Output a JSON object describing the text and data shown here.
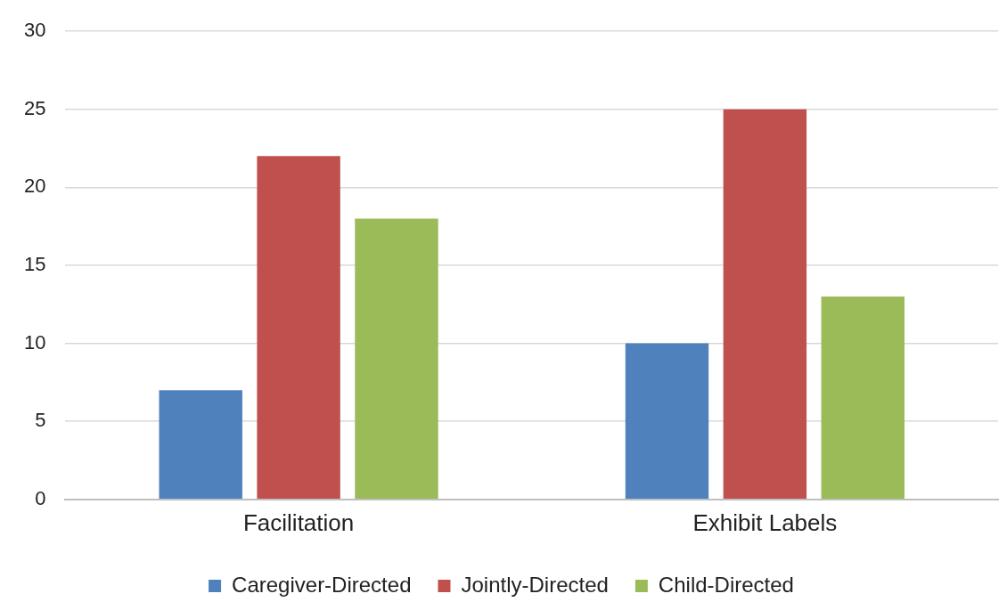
{
  "chart_data": {
    "type": "bar",
    "categories": [
      "Facilitation",
      "Exhibit Labels"
    ],
    "series": [
      {
        "name": "Caregiver-Directed",
        "color": "#4f81bd",
        "values": [
          7,
          10
        ]
      },
      {
        "name": "Jointly-Directed",
        "color": "#c0504d",
        "values": [
          22,
          25
        ]
      },
      {
        "name": "Child-Directed",
        "color": "#9bbb59",
        "values": [
          18,
          13
        ]
      }
    ],
    "ylim": [
      0,
      30
    ],
    "yticks": [
      0,
      5,
      10,
      15,
      20,
      25,
      30
    ],
    "grid": "y",
    "legend": "bottom"
  }
}
